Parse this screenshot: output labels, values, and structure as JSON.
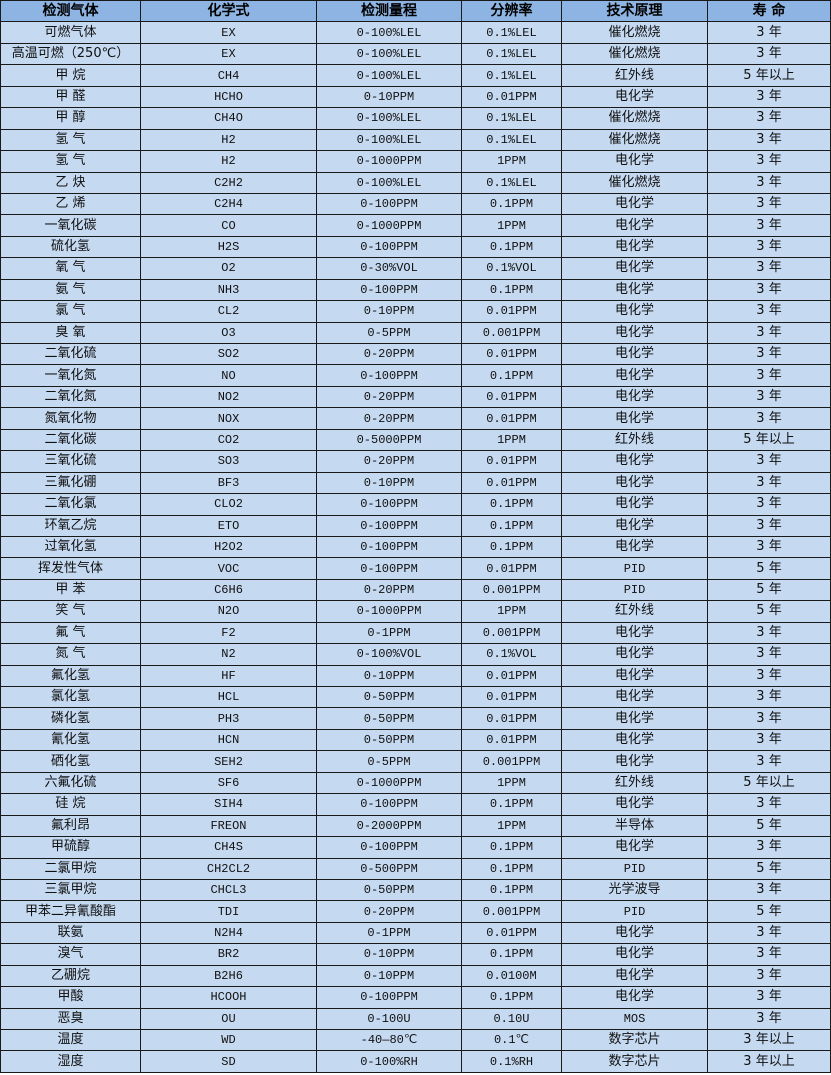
{
  "colors": {
    "header_bg": "#8db4e2",
    "row_bg": "#c5d9f1",
    "border": "#1a1a1a"
  },
  "headers": [
    "检测气体",
    "化学式",
    "检测量程",
    "分辨率",
    "技术原理",
    "寿 命"
  ],
  "rows": [
    [
      "可燃气体",
      "EX",
      "0-100%LEL",
      "0.1%LEL",
      "催化燃烧",
      "3 年"
    ],
    [
      "高温可燃（250℃）",
      "EX",
      "0-100%LEL",
      "0.1%LEL",
      "催化燃烧",
      "3 年"
    ],
    [
      "甲 烷",
      "CH4",
      "0-100%LEL",
      "0.1%LEL",
      "红外线",
      "5 年以上"
    ],
    [
      "甲 醛",
      "HCHO",
      "0-10PPM",
      "0.01PPM",
      "电化学",
      "3 年"
    ],
    [
      "甲 醇",
      "CH4O",
      "0-100%LEL",
      "0.1%LEL",
      "催化燃烧",
      "3 年"
    ],
    [
      "氢 气",
      "H2",
      "0-100%LEL",
      "0.1%LEL",
      "催化燃烧",
      "3 年"
    ],
    [
      "氢 气",
      "H2",
      "0-1000PPM",
      "1PPM",
      "电化学",
      "3 年"
    ],
    [
      "乙 炔",
      "C2H2",
      "0-100%LEL",
      "0.1%LEL",
      "催化燃烧",
      "3 年"
    ],
    [
      "乙 烯",
      "C2H4",
      "0-100PPM",
      "0.1PPM",
      "电化学",
      "3 年"
    ],
    [
      "一氧化碳",
      "CO",
      "0-1000PPM",
      "1PPM",
      "电化学",
      "3 年"
    ],
    [
      "硫化氢",
      "H2S",
      "0-100PPM",
      "0.1PPM",
      "电化学",
      "3 年"
    ],
    [
      "氧 气",
      "O2",
      "0-30%VOL",
      "0.1%VOL",
      "电化学",
      "3 年"
    ],
    [
      "氨 气",
      "NH3",
      "0-100PPM",
      "0.1PPM",
      "电化学",
      "3 年"
    ],
    [
      "氯 气",
      "CL2",
      "0-10PPM",
      "0.01PPM",
      "电化学",
      "3 年"
    ],
    [
      "臭 氧",
      "O3",
      "0-5PPM",
      "0.001PPM",
      "电化学",
      "3 年"
    ],
    [
      "二氧化硫",
      "SO2",
      "0-20PPM",
      "0.01PPM",
      "电化学",
      "3 年"
    ],
    [
      "一氧化氮",
      "NO",
      "0-100PPM",
      "0.1PPM",
      "电化学",
      "3 年"
    ],
    [
      "二氧化氮",
      "NO2",
      "0-20PPM",
      "0.01PPM",
      "电化学",
      "3 年"
    ],
    [
      "氮氧化物",
      "NOX",
      "0-20PPM",
      "0.01PPM",
      "电化学",
      "3 年"
    ],
    [
      "二氧化碳",
      "CO2",
      "0-5000PPM",
      "1PPM",
      "红外线",
      "5 年以上"
    ],
    [
      "三氧化硫",
      "SO3",
      "0-20PPM",
      "0.01PPM",
      "电化学",
      "3 年"
    ],
    [
      "三氟化硼",
      "BF3",
      "0-10PPM",
      "0.01PPM",
      "电化学",
      "3 年"
    ],
    [
      "二氧化氯",
      "CLO2",
      "0-100PPM",
      "0.1PPM",
      "电化学",
      "3 年"
    ],
    [
      "环氧乙烷",
      "ETO",
      "0-100PPM",
      "0.1PPM",
      "电化学",
      "3 年"
    ],
    [
      "过氧化氢",
      "H2O2",
      "0-100PPM",
      "0.1PPM",
      "电化学",
      "3 年"
    ],
    [
      "挥发性气体",
      "VOC",
      "0-100PPM",
      "0.01PPM",
      "PID",
      "5 年"
    ],
    [
      "甲 苯",
      "C6H6",
      "0-20PPM",
      "0.001PPM",
      "PID",
      "5 年"
    ],
    [
      "笑 气",
      "N2O",
      "0-1000PPM",
      "1PPM",
      "红外线",
      "5 年"
    ],
    [
      "氟 气",
      "F2",
      "0-1PPM",
      "0.001PPM",
      "电化学",
      "3 年"
    ],
    [
      "氮 气",
      "N2",
      "0-100%VOL",
      "0.1%VOL",
      "电化学",
      "3 年"
    ],
    [
      "氟化氢",
      "HF",
      "0-10PPM",
      "0.01PPM",
      "电化学",
      "3 年"
    ],
    [
      "氯化氢",
      "HCL",
      "0-50PPM",
      "0.01PPM",
      "电化学",
      "3 年"
    ],
    [
      "磷化氢",
      "PH3",
      "0-50PPM",
      "0.01PPM",
      "电化学",
      "3 年"
    ],
    [
      "氰化氢",
      "HCN",
      "0-50PPM",
      "0.01PPM",
      "电化学",
      "3 年"
    ],
    [
      "硒化氢",
      "SEH2",
      "0-5PPM",
      "0.001PPM",
      "电化学",
      "3 年"
    ],
    [
      "六氟化硫",
      "SF6",
      "0-1000PPM",
      "1PPM",
      "红外线",
      "5 年以上"
    ],
    [
      "硅 烷",
      "SIH4",
      "0-100PPM",
      "0.1PPM",
      "电化学",
      "3 年"
    ],
    [
      "氟利昂",
      "FREON",
      "0-2000PPM",
      "1PPM",
      "半导体",
      "5 年"
    ],
    [
      "甲硫醇",
      "CH4S",
      "0-100PPM",
      "0.1PPM",
      "电化学",
      "3 年"
    ],
    [
      "二氯甲烷",
      "CH2CL2",
      "0-500PPM",
      "0.1PPM",
      "PID",
      "5 年"
    ],
    [
      "三氯甲烷",
      "CHCL3",
      "0-50PPM",
      "0.1PPM",
      "光学波导",
      "3 年"
    ],
    [
      "甲苯二异氰酸酯",
      "TDI",
      "0-20PPM",
      "0.001PPM",
      "PID",
      "5 年"
    ],
    [
      "联氨",
      "N2H4",
      "0-1PPM",
      "0.01PPM",
      "电化学",
      "3 年"
    ],
    [
      "溴气",
      "BR2",
      "0-10PPM",
      "0.1PPM",
      "电化学",
      "3 年"
    ],
    [
      "乙硼烷",
      "B2H6",
      "0-10PPM",
      "0.0100M",
      "电化学",
      "3 年"
    ],
    [
      "甲酸",
      "HCOOH",
      "0-100PPM",
      "0.1PPM",
      "电化学",
      "3 年"
    ],
    [
      "恶臭",
      "OU",
      "0-100U",
      "0.10U",
      "MOS",
      "3 年"
    ],
    [
      "温度",
      "WD",
      "-40—80℃",
      "0.1℃",
      "数字芯片",
      "3 年以上"
    ],
    [
      "湿度",
      "SD",
      "0-100%RH",
      "0.1%RH",
      "数字芯片",
      "3 年以上"
    ]
  ]
}
